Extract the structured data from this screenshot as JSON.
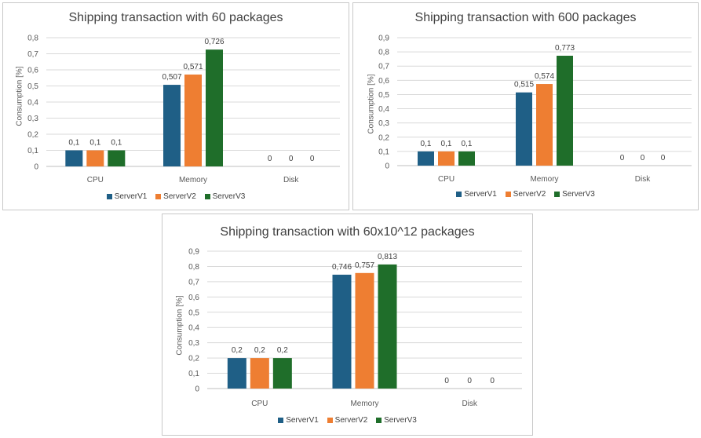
{
  "colors": {
    "ServerV1": "#1f5f86",
    "ServerV2": "#ee7e32",
    "ServerV3": "#1f6e2a",
    "grid": "#d9d9d9",
    "axis": "#bfbfbf",
    "text": "#595959"
  },
  "chart_data": [
    {
      "type": "bar",
      "title": "Shipping transaction with 60 packages",
      "ylabel": "Consumption [%]",
      "categories": [
        "CPU",
        "Memory",
        "Disk"
      ],
      "ylim": [
        0,
        0.8
      ],
      "yticks": [
        "0",
        "0,1",
        "0,2",
        "0,3",
        "0,4",
        "0,5",
        "0,6",
        "0,7",
        "0,8"
      ],
      "series": [
        {
          "name": "ServerV1",
          "values": [
            0.1,
            0.507,
            0
          ],
          "labels": [
            "0,1",
            "0,507",
            "0"
          ]
        },
        {
          "name": "ServerV2",
          "values": [
            0.1,
            0.571,
            0
          ],
          "labels": [
            "0,1",
            "0,571",
            "0"
          ]
        },
        {
          "name": "ServerV3",
          "values": [
            0.1,
            0.726,
            0
          ],
          "labels": [
            "0,1",
            "0,726",
            "0"
          ]
        }
      ],
      "grid": true,
      "legend": "bottom"
    },
    {
      "type": "bar",
      "title": "Shipping transaction with 600 packages",
      "ylabel": "Consumption [%]",
      "categories": [
        "CPU",
        "Memory",
        "Disk"
      ],
      "ylim": [
        0,
        0.9
      ],
      "yticks": [
        "0",
        "0,1",
        "0,2",
        "0,3",
        "0,4",
        "0,5",
        "0,6",
        "0,7",
        "0,8",
        "0,9"
      ],
      "series": [
        {
          "name": "ServerV1",
          "values": [
            0.1,
            0.515,
            0
          ],
          "labels": [
            "0,1",
            "0,515",
            "0"
          ]
        },
        {
          "name": "ServerV2",
          "values": [
            0.1,
            0.574,
            0
          ],
          "labels": [
            "0,1",
            "0,574",
            "0"
          ]
        },
        {
          "name": "ServerV3",
          "values": [
            0.1,
            0.773,
            0
          ],
          "labels": [
            "0,1",
            "0,773",
            "0"
          ]
        }
      ],
      "grid": true,
      "legend": "bottom"
    },
    {
      "type": "bar",
      "title": "Shipping transaction with 60x10^12 packages",
      "ylabel": "Consumption [%]",
      "categories": [
        "CPU",
        "Memory",
        "Disk"
      ],
      "ylim": [
        0,
        0.9
      ],
      "yticks": [
        "0",
        "0,1",
        "0,2",
        "0,3",
        "0,4",
        "0,5",
        "0,6",
        "0,7",
        "0,8",
        "0,9"
      ],
      "series": [
        {
          "name": "ServerV1",
          "values": [
            0.2,
            0.746,
            0
          ],
          "labels": [
            "0,2",
            "0,746",
            "0"
          ]
        },
        {
          "name": "ServerV2",
          "values": [
            0.2,
            0.757,
            0
          ],
          "labels": [
            "0,2",
            "0,757",
            "0"
          ]
        },
        {
          "name": "ServerV3",
          "values": [
            0.2,
            0.813,
            0
          ],
          "labels": [
            "0,2",
            "0,813",
            "0"
          ]
        }
      ],
      "grid": true,
      "legend": "bottom"
    }
  ]
}
